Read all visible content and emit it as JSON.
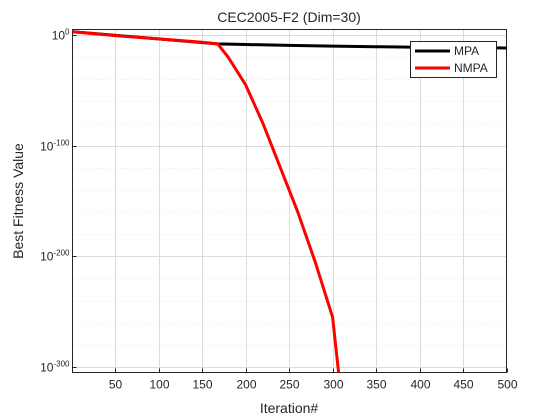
{
  "chart_data": {
    "type": "line",
    "title": "CEC2005-F2 (Dim=30)",
    "xlabel": "Iteration#",
    "ylabel": "Best Fitness Value",
    "xlim": [
      1,
      500
    ],
    "ylim_log10": [
      -305,
      5
    ],
    "y_scale": "log",
    "grid": true,
    "minor_grid": true,
    "legend_position": "top-right",
    "x_ticks": [
      50,
      100,
      150,
      200,
      250,
      300,
      350,
      400,
      450,
      500
    ],
    "y_ticks": [
      {
        "base": "10",
        "exponent": "0",
        "value_log10": 0
      },
      {
        "base": "10",
        "exponent": "-100",
        "value_log10": -100
      },
      {
        "base": "10",
        "exponent": "-200",
        "value_log10": -200
      },
      {
        "base": "10",
        "exponent": "-300",
        "value_log10": -300
      }
    ],
    "series": [
      {
        "name": "MPA",
        "color": "#000000",
        "x": [
          1,
          168,
          200,
          250,
          300,
          350,
          400,
          450,
          500
        ],
        "y_log10": [
          3,
          -8,
          -8.6,
          -9.4,
          -10,
          -10.5,
          -11,
          -11.3,
          -11.7
        ]
      },
      {
        "name": "NMPA",
        "color": "#ff0000",
        "x": [
          1,
          50,
          100,
          150,
          168,
          180,
          200,
          220,
          240,
          260,
          280,
          300,
          307
        ],
        "y_log10": [
          3,
          -0.5,
          -3.5,
          -6.5,
          -8,
          -20,
          -45,
          -80,
          -120,
          -160,
          -205,
          -255,
          -305
        ]
      }
    ]
  }
}
